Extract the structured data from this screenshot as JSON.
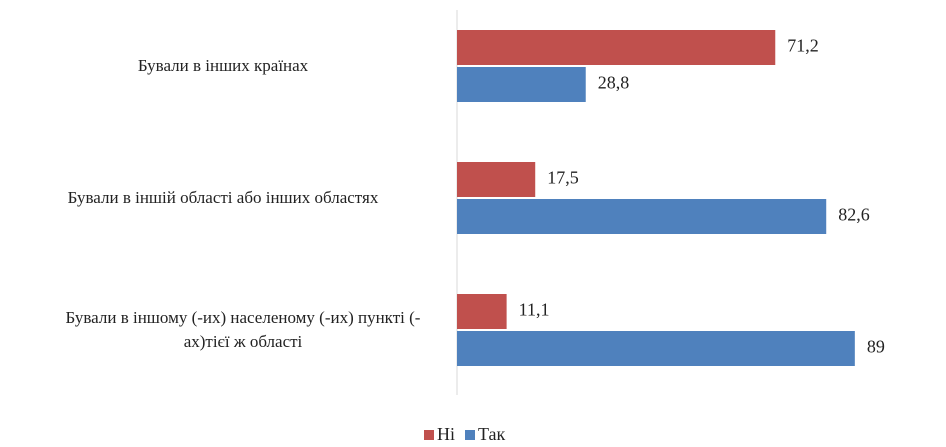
{
  "chart_data": {
    "type": "bar",
    "orientation": "horizontal",
    "categories": [
      "Бували в інших країнах",
      "Бували в  іншій області або інших областях",
      "Бували в іншому (-их) населеному (-их) пункті (-ах)тієї ж області"
    ],
    "series": [
      {
        "name": "Ні",
        "color": "#c0504d",
        "values": [
          71.2,
          17.5,
          11.1
        ],
        "value_labels": [
          "71,2",
          "17,5",
          "11,1"
        ]
      },
      {
        "name": "Так",
        "color": "#4f81bd",
        "values": [
          28.8,
          82.6,
          89
        ],
        "value_labels": [
          "28,8",
          "82,6",
          "89"
        ]
      }
    ],
    "legend": "bottom"
  }
}
